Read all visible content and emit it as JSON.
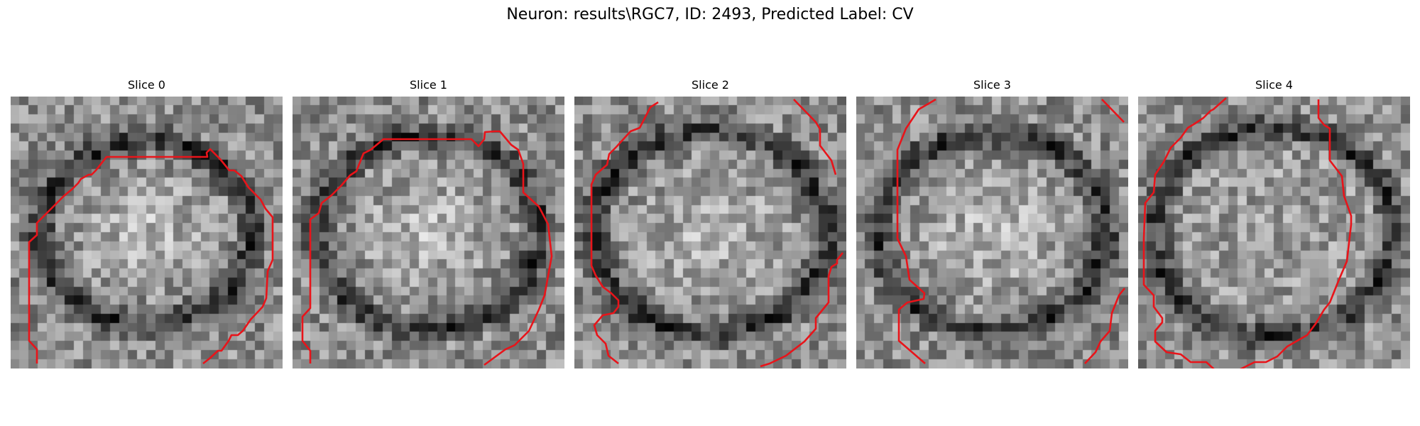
{
  "figure": {
    "title": "Neuron: results\\RGC7, ID: 2493, Predicted Label: CV"
  },
  "contour_color": "#e8141a",
  "slices": [
    {
      "title": "Slice 0",
      "seed": 11,
      "ring": 0.62,
      "bright_center": true
    },
    {
      "title": "Slice 1",
      "seed": 23,
      "ring": 0.66,
      "bright_center": true
    },
    {
      "title": "Slice 2",
      "seed": 37,
      "ring": 0.7,
      "bright_center": true
    },
    {
      "title": "Slice 3",
      "seed": 41,
      "ring": 0.68,
      "bright_center": true
    },
    {
      "title": "Slice 4",
      "seed": 53,
      "ring": 0.72,
      "bright_center": false
    }
  ]
}
